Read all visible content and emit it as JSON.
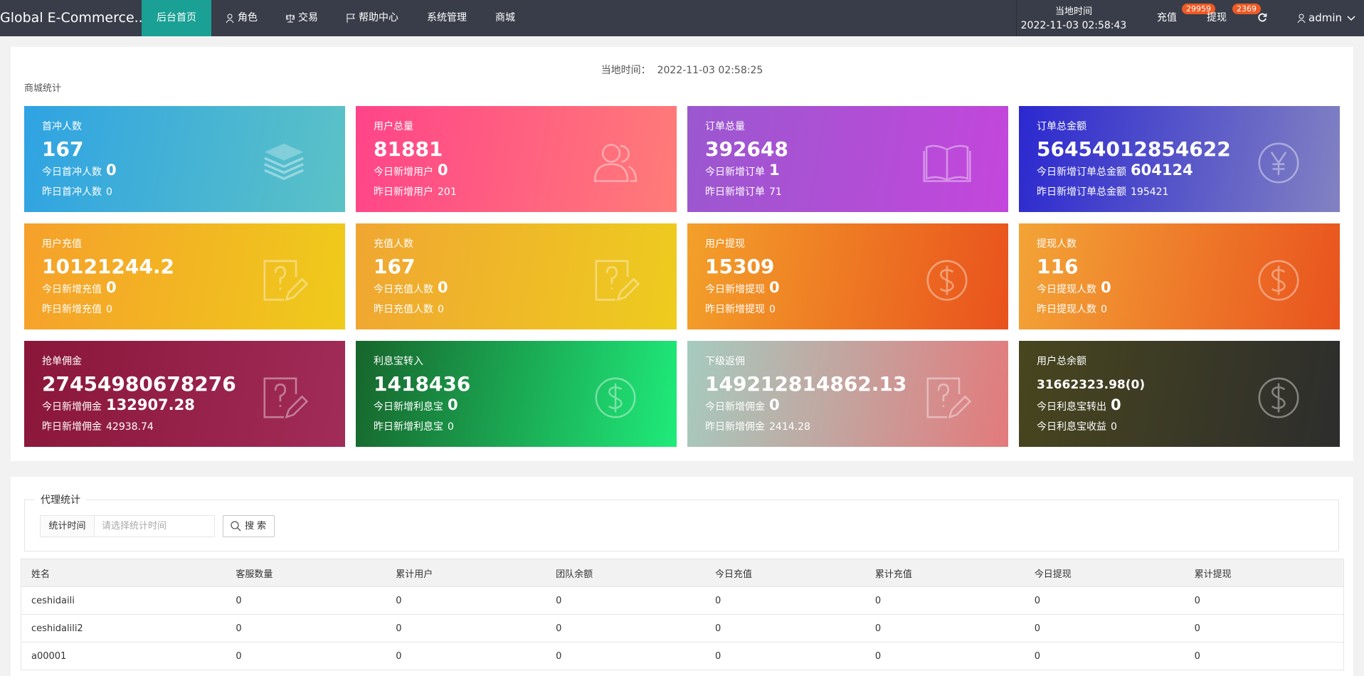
{
  "header": {
    "brand": "Global E-Commerce...",
    "nav": [
      "后台首页",
      "角色",
      "交易",
      "帮助中心",
      "系统管理",
      "商城"
    ],
    "time_label": "当地时间",
    "time_value": "2022-11-03 02:58:43",
    "recharge": {
      "label": "充值",
      "badge": 29959
    },
    "withdraw": {
      "label": "提现",
      "badge": 2369
    },
    "user": "admin"
  },
  "stats": {
    "time_label": "当地时间：",
    "time_value": "2022-11-03 02:58:25",
    "section_title": "商城统计",
    "cards": [
      {
        "label": "首冲人数",
        "value": 167,
        "today_label": "今日首冲人数",
        "today_value": 0,
        "yesterday_label": "昨日首冲人数",
        "yesterday_value": 0
      },
      {
        "label": "用户总量",
        "value": 81881,
        "today_label": "今日新增用户",
        "today_value": 0,
        "yesterday_label": "昨日新增用户",
        "yesterday_value": 201
      },
      {
        "label": "订单总量",
        "value": 392648,
        "today_label": "今日新增订单",
        "today_value": 1,
        "yesterday_label": "昨日新增订单",
        "yesterday_value": 71
      },
      {
        "label": "订单总金额",
        "value": 56454012854622,
        "today_label": "今日新增订单总金额",
        "today_value": 604124,
        "yesterday_label": "昨日新增订单总金额",
        "yesterday_value": 195421
      },
      {
        "label": "用户充值",
        "value": 10121244.2,
        "today_label": "今日新增充值",
        "today_value": 0,
        "yesterday_label": "昨日新增充值",
        "yesterday_value": 0
      },
      {
        "label": "充值人数",
        "value": 167,
        "today_label": "今日充值人数",
        "today_value": 0,
        "yesterday_label": "昨日充值人数",
        "yesterday_value": 0
      },
      {
        "label": "用户提现",
        "value": 15309,
        "today_label": "今日新增提现",
        "today_value": 0,
        "yesterday_label": "昨日新增提现",
        "yesterday_value": 0
      },
      {
        "label": "提现人数",
        "value": 116,
        "today_label": "今日提现人数",
        "today_value": 0,
        "yesterday_label": "昨日提现人数",
        "yesterday_value": 0
      },
      {
        "label": "抢单佣金",
        "value": 27454980678276,
        "today_label": "今日新增佣金",
        "today_value": 132907.28,
        "yesterday_label": "昨日新增佣金",
        "yesterday_value": 42938.74
      },
      {
        "label": "利息宝转入",
        "value": 1418436,
        "today_label": "今日新增利息宝",
        "today_value": 0,
        "yesterday_label": "昨日新增利息宝",
        "yesterday_value": 0
      },
      {
        "label": "下级返佣",
        "value": 149212814862.13,
        "today_label": "今日新增佣金",
        "today_value": 0,
        "yesterday_label": "昨日新增佣金",
        "yesterday_value": 2414.28
      },
      {
        "label": "用户总余额",
        "value": "31662323.98(0)",
        "today_label": "今日利息宝转出",
        "today_value": 0,
        "yesterday_label": "今日利息宝收益",
        "yesterday_value": 0
      }
    ]
  },
  "agent": {
    "legend": "代理统计",
    "filter_label": "统计时间",
    "filter_placeholder": "请选择统计时间",
    "search": "搜 索",
    "table": {
      "columns": [
        "姓名",
        "客服数量",
        "累计用户",
        "团队余额",
        "今日充值",
        "累计充值",
        "今日提现",
        "累计提现"
      ],
      "rows": [
        [
          "ceshidaili",
          0,
          0,
          0,
          0,
          0,
          0,
          0
        ],
        [
          "ceshidalili2",
          0,
          0,
          0,
          0,
          0,
          0,
          0
        ],
        [
          "a00001",
          0,
          0,
          0,
          0,
          0,
          0,
          0
        ]
      ]
    }
  }
}
